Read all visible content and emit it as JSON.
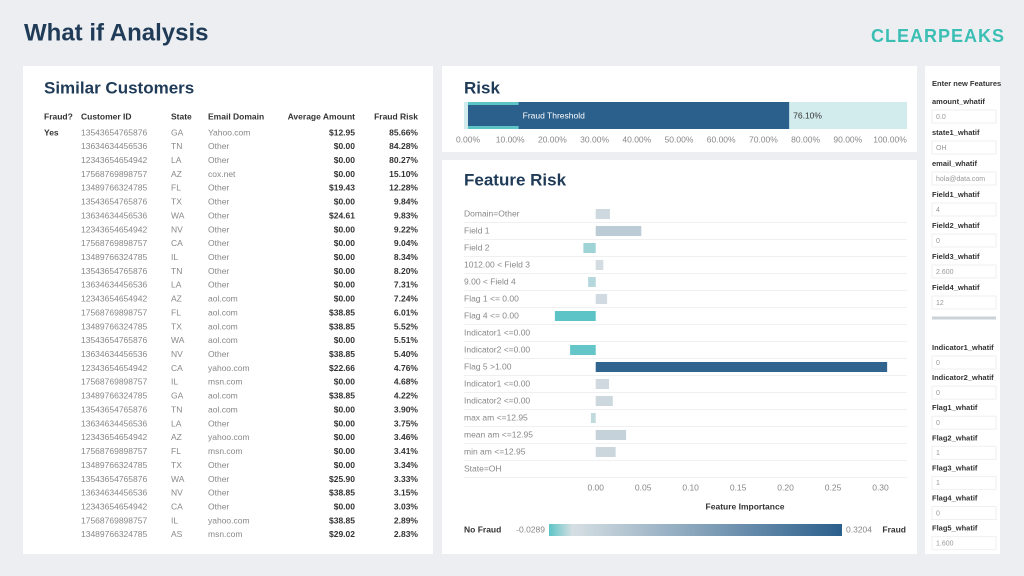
{
  "header": {
    "title": "What if Analysis",
    "logo": "CLEARPEAKS"
  },
  "table": {
    "title": "Similar Customers",
    "columns": [
      "Fraud?",
      "Customer ID",
      "State",
      "Email Domain",
      "Average Amount",
      "Fraud Risk"
    ],
    "rows": [
      [
        "Yes",
        "13543654765876",
        "GA",
        "Yahoo.com",
        "$12.95",
        "85.66%"
      ],
      [
        null,
        "13634634456536",
        "TN",
        "Other",
        "$0.00",
        "84.28%"
      ],
      [
        null,
        "12343654654942",
        "LA",
        "Other",
        "$0.00",
        "80.27%"
      ],
      [
        null,
        "17568769898757",
        "AZ",
        "cox.net",
        "$0.00",
        "15.10%"
      ],
      [
        null,
        "13489766324785",
        "FL",
        "Other",
        "$19.43",
        "12.28%"
      ],
      [
        null,
        "13543654765876",
        "TX",
        "Other",
        "$0.00",
        "9.84%"
      ],
      [
        null,
        "13634634456536",
        "WA",
        "Other",
        "$24.61",
        "9.83%"
      ],
      [
        null,
        "12343654654942",
        "NV",
        "Other",
        "$0.00",
        "9.22%"
      ],
      [
        null,
        "17568769898757",
        "CA",
        "Other",
        "$0.00",
        "9.04%"
      ],
      [
        null,
        "13489766324785",
        "IL",
        "Other",
        "$0.00",
        "8.34%"
      ],
      [
        null,
        "13543654765876",
        "TN",
        "Other",
        "$0.00",
        "8.20%"
      ],
      [
        null,
        "13634634456536",
        "LA",
        "Other",
        "$0.00",
        "7.31%"
      ],
      [
        null,
        "12343654654942",
        "AZ",
        "aol.com",
        "$0.00",
        "7.24%"
      ],
      [
        null,
        "17568769898757",
        "FL",
        "aol.com",
        "$38.85",
        "6.01%"
      ],
      [
        null,
        "13489766324785",
        "TX",
        "aol.com",
        "$38.85",
        "5.52%"
      ],
      [
        null,
        "13543654765876",
        "WA",
        "aol.com",
        "$0.00",
        "5.51%"
      ],
      [
        null,
        "13634634456536",
        "NV",
        "Other",
        "$38.85",
        "5.40%"
      ],
      [
        null,
        "12343654654942",
        "CA",
        "yahoo.com",
        "$22.66",
        "4.76%"
      ],
      [
        null,
        "17568769898757",
        "IL",
        "msn.com",
        "$0.00",
        "4.68%"
      ],
      [
        null,
        "13489766324785",
        "GA",
        "aol.com",
        "$38.85",
        "4.22%"
      ],
      [
        null,
        "13543654765876",
        "TN",
        "aol.com",
        "$0.00",
        "3.90%"
      ],
      [
        null,
        "13634634456536",
        "LA",
        "Other",
        "$0.00",
        "3.75%"
      ],
      [
        null,
        "12343654654942",
        "AZ",
        "yahoo.com",
        "$0.00",
        "3.46%"
      ],
      [
        null,
        "17568769898757",
        "FL",
        "msn.com",
        "$0.00",
        "3.41%"
      ],
      [
        null,
        "13489766324785",
        "TX",
        "Other",
        "$0.00",
        "3.34%"
      ],
      [
        null,
        "13543654765876",
        "WA",
        "Other",
        "$25.90",
        "3.33%"
      ],
      [
        null,
        "13634634456536",
        "NV",
        "Other",
        "$38.85",
        "3.15%"
      ],
      [
        null,
        "12343654654942",
        "CA",
        "Other",
        "$0.00",
        "3.03%"
      ],
      [
        null,
        "17568769898757",
        "IL",
        "yahoo.com",
        "$38.85",
        "2.89%"
      ],
      [
        null,
        "13489766324785",
        "AS",
        "msn.com",
        "$29.02",
        "2.83%"
      ]
    ]
  },
  "risk": {
    "type": "bar",
    "title": "Risk",
    "bar_label": "Fraud Threshold",
    "value": 76.1,
    "value_label": "76.10%",
    "threshold": 12,
    "color": "#2b5f8c",
    "track_color": "#d2ebed",
    "threshold_color": "#5cc4c6",
    "xlim": [
      0,
      100
    ],
    "xticks": [
      {
        "value": 0,
        "label": "0.00%"
      },
      {
        "value": 10,
        "label": "10.00%"
      },
      {
        "value": 20,
        "label": "20.00%"
      },
      {
        "value": 30,
        "label": "30.00%"
      },
      {
        "value": 40,
        "label": "40.00%"
      },
      {
        "value": 50,
        "label": "50.00%"
      },
      {
        "value": 60,
        "label": "60.00%"
      },
      {
        "value": 70,
        "label": "70.00%"
      },
      {
        "value": 80,
        "label": "80.00%"
      },
      {
        "value": 90,
        "label": "90.00%"
      },
      {
        "value": 100,
        "label": "100.00%"
      }
    ]
  },
  "feature_risk": {
    "type": "bar",
    "title": "Feature Risk",
    "xlabel": "Feature Importance",
    "categories": [
      "Domain=Other",
      "Field 1",
      "Field 2",
      "1012.00 < Field 3",
      "9.00 < Field 4",
      "Flag 1 <= 0.00",
      "Flag 4 <= 0.00",
      "Indicator1 <=0.00",
      "Indicator2 <=0.00",
      "Flag 5 >1.00",
      "Indicator1 <=0.00",
      "Indicator2 <=0.00",
      "max am <=12.95",
      "mean am <=12.95",
      "min am <=12.95",
      "State=OH"
    ],
    "values": [
      0.015,
      0.048,
      -0.013,
      0.008,
      -0.008,
      0.012,
      -0.043,
      0,
      -0.027,
      0.307,
      0.014,
      0.018,
      -0.005,
      0.032,
      0.021,
      0
    ],
    "xlim": [
      -0.045,
      0.31
    ],
    "xticks": [
      {
        "value": 0,
        "label": "0.00"
      },
      0.05,
      {
        "value": 0.1,
        "label": "0.10"
      },
      0.15,
      {
        "value": 0.2,
        "label": "0.20"
      },
      0.25,
      {
        "value": 0.3,
        "label": "0.30"
      }
    ],
    "legend": {
      "low_label": "No Fraud",
      "high_label": "Fraud",
      "range": [
        -0.0289,
        0.3204
      ],
      "colors": [
        "#5cc4c6",
        "#d6dfe3",
        "#2b5f8c"
      ]
    }
  },
  "inputs": {
    "title": "Enter new Features",
    "fields": [
      {
        "label": "amount_whatif",
        "value": "0.0"
      },
      {
        "label": "state1_whatif",
        "value": "OH"
      },
      {
        "label": "email_whatif",
        "value": "hola@data.com"
      },
      {
        "label": "Field1_whatif",
        "value": "4"
      },
      {
        "label": "Field2_whatif",
        "value": "0"
      },
      {
        "label": "Field3_whatif",
        "value": "2.600"
      },
      {
        "label": "Field4_whatif",
        "value": "12"
      },
      {
        "label": "Indicator1_whatif",
        "value": "0"
      },
      {
        "label": "Indicator2_whatif",
        "value": "0"
      },
      {
        "label": "Flag1_whatif",
        "value": "0"
      },
      {
        "label": "Flag2_whatif",
        "value": "1"
      },
      {
        "label": "Flag3_whatif",
        "value": "1"
      },
      {
        "label": "Flag4_whatif",
        "value": "0"
      },
      {
        "label": "Flag5_whatif",
        "value": "1.600"
      }
    ]
  }
}
